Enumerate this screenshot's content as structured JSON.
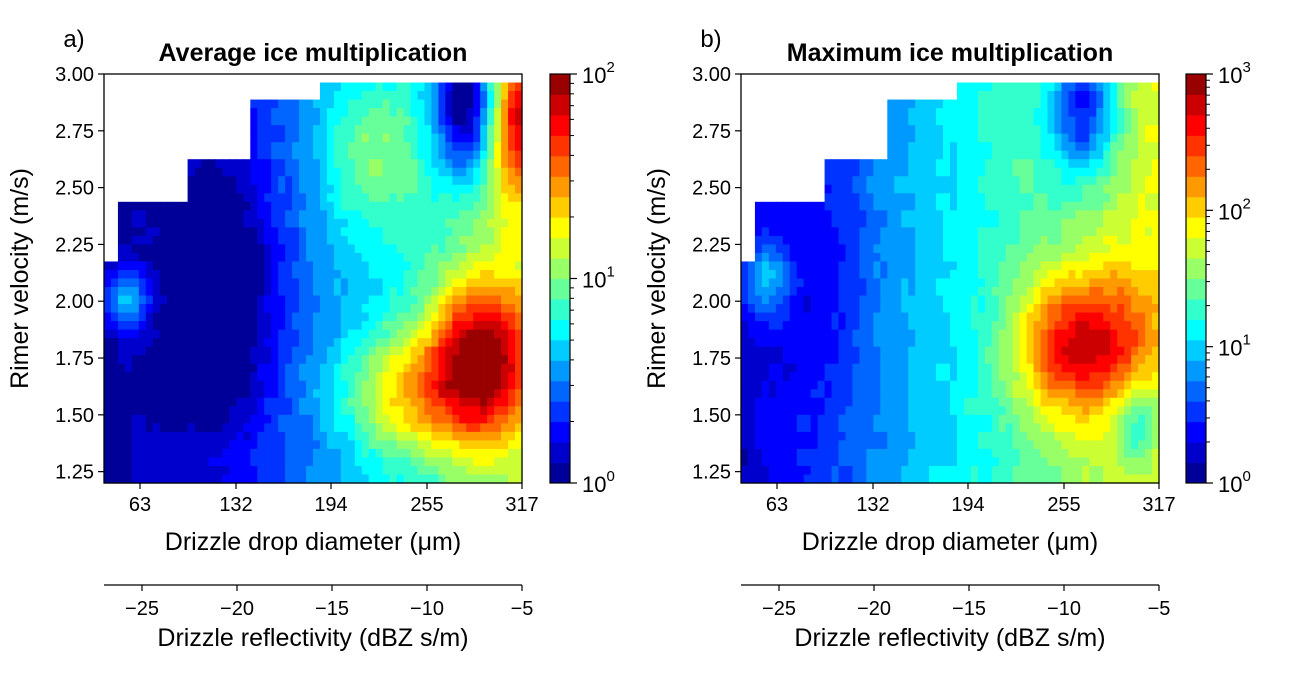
{
  "chart_data": [
    {
      "type": "heatmap",
      "panel_label": "a)",
      "title": "Average ice multiplication",
      "xlabel": "Drizzle drop diameter (μm)",
      "ylabel": "Rimer velocity (m/s)",
      "x_ticks": [
        "63",
        "132",
        "194",
        "255",
        "317"
      ],
      "y_ticks": [
        "1.25",
        "1.50",
        "1.75",
        "2.00",
        "2.25",
        "2.50",
        "2.75",
        "3.00"
      ],
      "ylim": [
        1.2,
        3.0
      ],
      "secondary_xlabel": "Drizzle reflectivity (dBZ s/m)",
      "secondary_x_ticks": [
        "−25",
        "−20",
        "−15",
        "−10",
        "−5"
      ],
      "secondary_xlim": [
        -27,
        -5
      ],
      "colorbar": {
        "scale": "log",
        "range": [
          1,
          100
        ],
        "tick_labels": [
          "10^0",
          "10^1",
          "10^2"
        ],
        "levels": 20,
        "colormap": "jet"
      }
    },
    {
      "type": "heatmap",
      "panel_label": "b)",
      "title": "Maximum ice multiplication",
      "xlabel": "Drizzle drop diameter (μm)",
      "ylabel": "Rimer velocity (m/s)",
      "x_ticks": [
        "63",
        "132",
        "194",
        "255",
        "317"
      ],
      "y_ticks": [
        "1.25",
        "1.50",
        "1.75",
        "2.00",
        "2.25",
        "2.50",
        "2.75",
        "3.00"
      ],
      "ylim": [
        1.2,
        3.0
      ],
      "secondary_xlabel": "Drizzle reflectivity (dBZ s/m)",
      "secondary_x_ticks": [
        "−25",
        "−20",
        "−15",
        "−10",
        "−5"
      ],
      "secondary_xlim": [
        -27,
        -5
      ],
      "colorbar": {
        "scale": "log",
        "range": [
          1,
          1000
        ],
        "tick_labels": [
          "10^0",
          "10^1",
          "10^2",
          "10^3"
        ],
        "levels": 20,
        "colormap": "jet"
      }
    }
  ]
}
